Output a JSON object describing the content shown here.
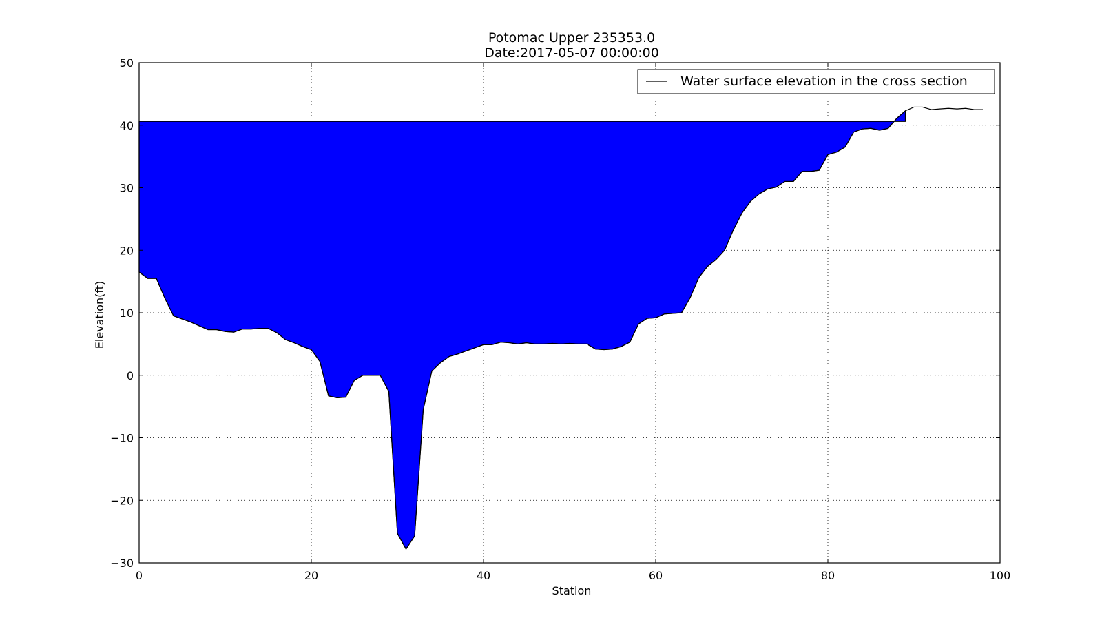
{
  "chart_data": {
    "type": "area",
    "title": "Potomac Upper 235353.0",
    "subtitle": "Date:2017-05-07 00:00:00",
    "xlabel": "Station",
    "ylabel": "Elevation(ft)",
    "xlim": [
      0,
      100
    ],
    "ylim": [
      -30,
      50
    ],
    "x_ticks": [
      0,
      20,
      40,
      60,
      80,
      100
    ],
    "y_ticks": [
      -30,
      -20,
      -10,
      0,
      10,
      20,
      30,
      40,
      50
    ],
    "x_tick_labels": [
      "0",
      "20",
      "40",
      "60",
      "80",
      "100"
    ],
    "y_tick_labels": [
      "−30",
      "−20",
      "−10",
      "0",
      "10",
      "20",
      "30",
      "40",
      "50"
    ],
    "grid": true,
    "legend_position": "upper-right",
    "legend": [
      "Water surface elevation in the cross section"
    ],
    "water_surface_elevation": 40.6,
    "fill_color": "#0000ff",
    "line_color": "#000000",
    "series": [
      {
        "name": "Water surface elevation in the cross section",
        "x": [
          0,
          1,
          2,
          3,
          4,
          5,
          6,
          7,
          8,
          9,
          10,
          11,
          12,
          13,
          14,
          15,
          16,
          17,
          18,
          19,
          20,
          21,
          22,
          23,
          24,
          25,
          26,
          27,
          28,
          29,
          30,
          31,
          32,
          33,
          34,
          35,
          36,
          37,
          38,
          39,
          40,
          41,
          42,
          43,
          44,
          45,
          46,
          47,
          48,
          49,
          50,
          51,
          52,
          53,
          54,
          55,
          56,
          57,
          58,
          59,
          60,
          61,
          62,
          63,
          64,
          65,
          66,
          67,
          68,
          69,
          70,
          71,
          72,
          73,
          74,
          75,
          76,
          77,
          78,
          79,
          80,
          81,
          82,
          83,
          84,
          85,
          86,
          87,
          88,
          89,
          90,
          91,
          92,
          93,
          94,
          95,
          96,
          97,
          98
        ],
        "y": [
          16.5,
          15.5,
          15.5,
          12.3,
          9.5,
          9.0,
          8.5,
          7.9,
          7.3,
          7.3,
          7.0,
          6.9,
          7.4,
          7.4,
          7.5,
          7.5,
          6.8,
          5.7,
          5.2,
          4.6,
          4.1,
          2.2,
          -3.3,
          -3.6,
          -3.5,
          -0.8,
          0.0,
          0.0,
          0.0,
          -2.6,
          -25.3,
          -27.8,
          -25.7,
          -5.5,
          0.7,
          2.0,
          3.0,
          3.4,
          3.9,
          4.4,
          4.9,
          4.9,
          5.3,
          5.2,
          5.0,
          5.2,
          5.0,
          5.0,
          5.1,
          5.0,
          5.1,
          5.0,
          5.0,
          4.2,
          4.1,
          4.2,
          4.6,
          5.3,
          8.2,
          9.1,
          9.2,
          9.8,
          9.9,
          10.0,
          12.4,
          15.6,
          17.4,
          18.5,
          20.0,
          23.2,
          25.9,
          27.8,
          29.0,
          29.8,
          30.1,
          31.0,
          31.0,
          32.6,
          32.6,
          32.8,
          35.3,
          35.7,
          36.5,
          38.9,
          39.4,
          39.5,
          39.2,
          39.5,
          41.1,
          42.3,
          42.9,
          42.9,
          42.5,
          42.6,
          42.7,
          42.6,
          42.7,
          42.5,
          42.5
        ]
      }
    ]
  }
}
